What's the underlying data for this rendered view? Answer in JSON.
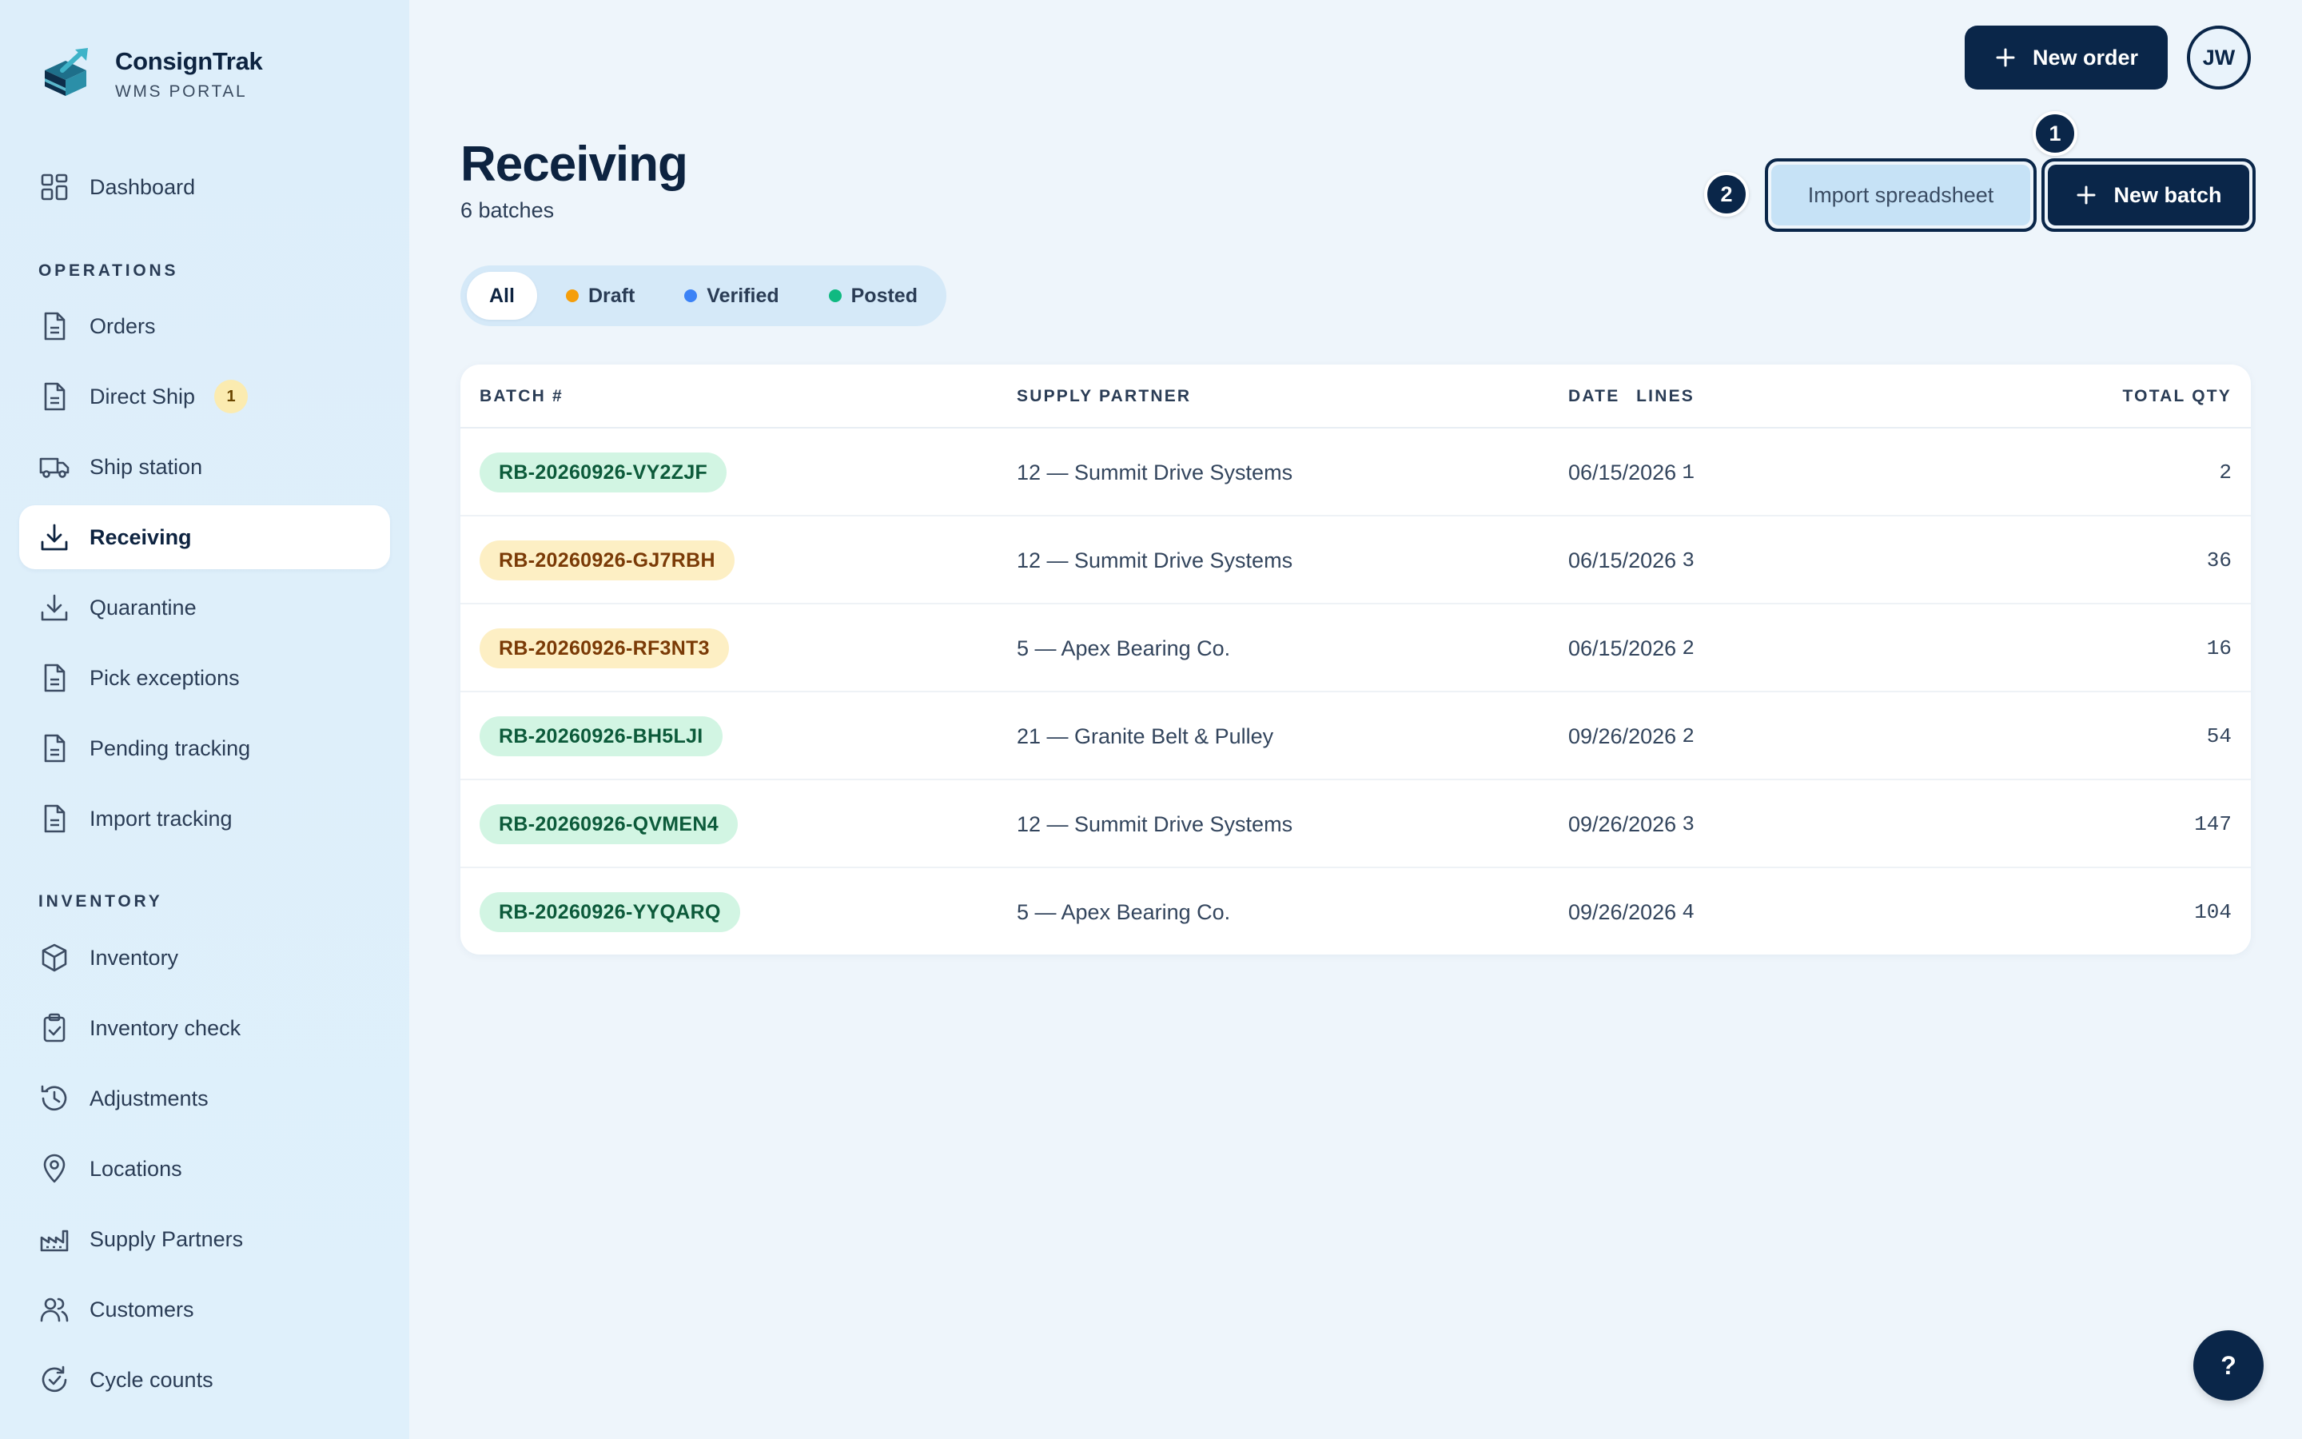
{
  "brand": {
    "name": "ConsignTrak",
    "subtitle": "WMS PORTAL"
  },
  "sidebar": {
    "top": [
      {
        "label": "Dashboard",
        "icon": "dashboard-icon"
      }
    ],
    "operations_label": "OPERATIONS",
    "operations": [
      {
        "label": "Orders",
        "icon": "document-icon"
      },
      {
        "label": "Direct Ship",
        "icon": "document-icon",
        "badge": "1"
      },
      {
        "label": "Ship station",
        "icon": "truck-icon"
      },
      {
        "label": "Receiving",
        "icon": "download-icon",
        "active": true
      },
      {
        "label": "Quarantine",
        "icon": "download-icon"
      },
      {
        "label": "Pick exceptions",
        "icon": "document-icon"
      },
      {
        "label": "Pending tracking",
        "icon": "document-icon"
      },
      {
        "label": "Import tracking",
        "icon": "document-icon"
      }
    ],
    "inventory_label": "INVENTORY",
    "inventory": [
      {
        "label": "Inventory",
        "icon": "cube-icon"
      },
      {
        "label": "Inventory check",
        "icon": "clipboard-check-icon"
      },
      {
        "label": "Adjustments",
        "icon": "history-icon"
      },
      {
        "label": "Locations",
        "icon": "map-pin-icon"
      },
      {
        "label": "Supply Partners",
        "icon": "factory-icon"
      },
      {
        "label": "Customers",
        "icon": "users-icon"
      },
      {
        "label": "Cycle counts",
        "icon": "refresh-check-icon"
      }
    ]
  },
  "header": {
    "new_order_label": "New order",
    "avatar_initials": "JW"
  },
  "page": {
    "title": "Receiving",
    "subtitle": "6 batches"
  },
  "actions": {
    "import_label": "Import spreadsheet",
    "new_batch_label": "New batch",
    "callout_import": "2",
    "callout_new_batch": "1"
  },
  "filters": [
    {
      "label": "All",
      "active": true
    },
    {
      "label": "Draft",
      "dot_color": "#f59e0b"
    },
    {
      "label": "Verified",
      "dot_color": "#3b82f6"
    },
    {
      "label": "Posted",
      "dot_color": "#10b981"
    }
  ],
  "table": {
    "columns": {
      "batch": "BATCH #",
      "partner": "SUPPLY PARTNER",
      "date": "DATE",
      "lines": "LINES",
      "qty": "TOTAL QTY"
    },
    "rows": [
      {
        "batch": "RB-20260926-VY2ZJF",
        "status": "posted",
        "partner": "12 — Summit Drive Systems",
        "date": "06/15/2026",
        "lines": "1",
        "qty": "2"
      },
      {
        "batch": "RB-20260926-GJ7RBH",
        "status": "draft",
        "partner": "12 — Summit Drive Systems",
        "date": "06/15/2026",
        "lines": "3",
        "qty": "36"
      },
      {
        "batch": "RB-20260926-RF3NT3",
        "status": "draft",
        "partner": "5 — Apex Bearing Co.",
        "date": "06/15/2026",
        "lines": "2",
        "qty": "16"
      },
      {
        "batch": "RB-20260926-BH5LJI",
        "status": "posted",
        "partner": "21 — Granite Belt & Pulley",
        "date": "09/26/2026",
        "lines": "2",
        "qty": "54"
      },
      {
        "batch": "RB-20260926-QVMEN4",
        "status": "posted",
        "partner": "12 — Summit Drive Systems",
        "date": "09/26/2026",
        "lines": "3",
        "qty": "147"
      },
      {
        "batch": "RB-20260926-YYQARQ",
        "status": "posted",
        "partner": "5 — Apex Bearing Co.",
        "date": "09/26/2026",
        "lines": "4",
        "qty": "104"
      }
    ]
  },
  "help": {
    "label": "?"
  }
}
